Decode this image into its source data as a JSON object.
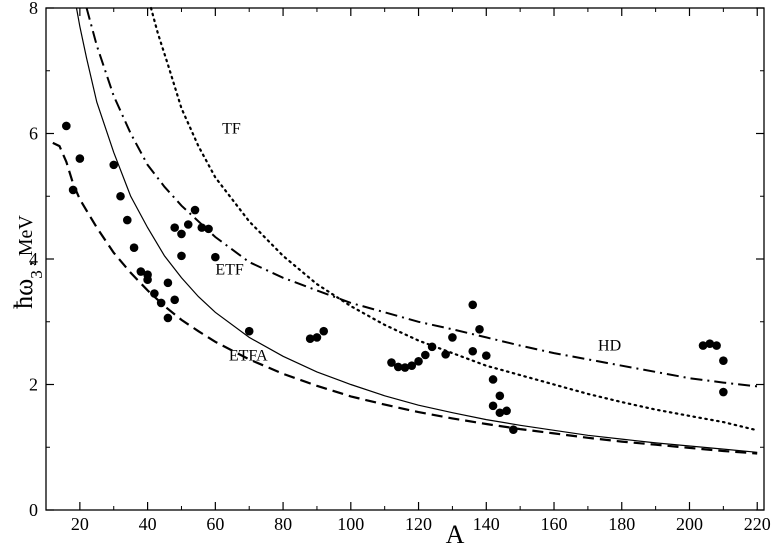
{
  "chart_data": {
    "type": "scatter",
    "xlabel": "A",
    "ylabel": {
      "h": "ħω",
      "sub": "3",
      "unit": ", MeV"
    },
    "xlim": [
      10,
      222
    ],
    "ylim": [
      0,
      8
    ],
    "xticks": [
      20,
      40,
      60,
      80,
      100,
      120,
      140,
      160,
      180,
      200,
      220
    ],
    "yticks": [
      0,
      2,
      4,
      6,
      8
    ],
    "grid": false,
    "curves": [
      {
        "name": "TF",
        "style": "dotted",
        "label_at": [
          62,
          6.0
        ],
        "x": [
          41,
          43,
          46,
          50,
          55,
          60,
          70,
          80,
          90,
          100,
          110,
          120,
          130,
          140,
          150,
          160,
          170,
          180,
          190,
          200,
          210,
          220
        ],
        "y": [
          8.0,
          7.6,
          7.1,
          6.4,
          5.8,
          5.3,
          4.6,
          4.05,
          3.6,
          3.25,
          2.95,
          2.7,
          2.5,
          2.3,
          2.15,
          2.0,
          1.85,
          1.72,
          1.6,
          1.5,
          1.4,
          1.27
        ]
      },
      {
        "name": "HD",
        "style": "dashdot",
        "label_at": [
          173,
          2.54
        ],
        "x": [
          22,
          25,
          30,
          35,
          40,
          45,
          50,
          60,
          70,
          80,
          90,
          100,
          110,
          120,
          130,
          140,
          150,
          160,
          170,
          180,
          190,
          200,
          210,
          220
        ],
        "y": [
          8.0,
          7.4,
          6.6,
          6.0,
          5.5,
          5.15,
          4.85,
          4.35,
          3.95,
          3.7,
          3.5,
          3.3,
          3.15,
          3.0,
          2.88,
          2.75,
          2.62,
          2.5,
          2.4,
          2.3,
          2.2,
          2.1,
          2.03,
          1.97
        ]
      },
      {
        "name": "ETF",
        "style": "solid",
        "label_at": [
          60,
          3.75
        ],
        "x": [
          19,
          20,
          22,
          25,
          30,
          35,
          40,
          45,
          50,
          55,
          60,
          70,
          80,
          90,
          100,
          110,
          120,
          130,
          140,
          150,
          160,
          170,
          180,
          190,
          200,
          210,
          220
        ],
        "y": [
          8.0,
          7.7,
          7.2,
          6.5,
          5.7,
          5.0,
          4.5,
          4.05,
          3.7,
          3.4,
          3.15,
          2.75,
          2.45,
          2.2,
          2.0,
          1.82,
          1.67,
          1.55,
          1.44,
          1.35,
          1.27,
          1.19,
          1.13,
          1.07,
          1.02,
          0.97,
          0.92
        ]
      },
      {
        "name": "ETFA",
        "style": "dashed",
        "label_at": [
          64,
          2.38
        ],
        "x": [
          12,
          14,
          16,
          18,
          20,
          25,
          30,
          35,
          40,
          45,
          50,
          55,
          60,
          70,
          80,
          90,
          100,
          110,
          120,
          130,
          140,
          150,
          160,
          170,
          180,
          190,
          200,
          210,
          220
        ],
        "y": [
          5.85,
          5.8,
          5.55,
          5.2,
          4.95,
          4.5,
          4.1,
          3.78,
          3.5,
          3.25,
          3.03,
          2.85,
          2.68,
          2.4,
          2.17,
          1.98,
          1.81,
          1.68,
          1.56,
          1.46,
          1.37,
          1.29,
          1.22,
          1.15,
          1.09,
          1.04,
          0.99,
          0.94,
          0.9
        ]
      }
    ],
    "points": {
      "x": [
        16,
        18,
        20,
        30,
        32,
        34,
        36,
        38,
        40,
        40,
        42,
        44,
        46,
        46,
        48,
        48,
        50,
        50,
        52,
        54,
        56,
        58,
        60,
        70,
        88,
        90,
        92,
        112,
        114,
        116,
        118,
        120,
        122,
        124,
        128,
        130,
        136,
        136,
        138,
        140,
        142,
        142,
        144,
        144,
        146,
        148,
        204,
        206,
        208,
        210,
        210
      ],
      "y": [
        6.12,
        5.1,
        5.6,
        5.5,
        5.0,
        4.62,
        4.18,
        3.8,
        3.75,
        3.67,
        3.45,
        3.3,
        3.62,
        3.06,
        4.5,
        3.35,
        4.4,
        4.05,
        4.55,
        4.78,
        4.5,
        4.48,
        4.03,
        2.85,
        2.73,
        2.75,
        2.85,
        2.35,
        2.28,
        2.27,
        2.3,
        2.37,
        2.47,
        2.6,
        2.48,
        2.75,
        3.27,
        2.53,
        2.88,
        2.46,
        2.08,
        1.66,
        1.82,
        1.55,
        1.58,
        1.28,
        2.62,
        2.65,
        2.62,
        2.38,
        1.88
      ]
    }
  }
}
